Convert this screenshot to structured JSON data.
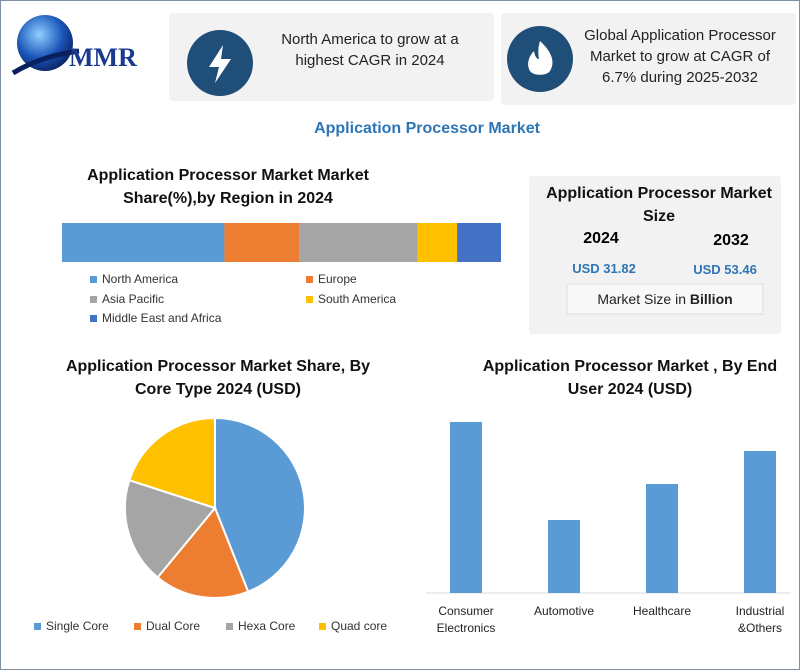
{
  "logo": "MMR",
  "header": {
    "cards": [
      "North America to grow at a highest CAGR in 2024",
      "Global Application Processor Market to grow at CAGR of 6.7% during 2025-2032"
    ]
  },
  "title": "Application Processor Market",
  "market_size": {
    "title": "Application Processor Market Size",
    "years": [
      "2024",
      "2032"
    ],
    "values": [
      "USD 31.82",
      "USD 53.46"
    ],
    "note": "Market Size in",
    "note_bold": "Billion"
  },
  "chart_data": [
    {
      "type": "stacked_bar",
      "title": "Application Processor Market Market Share(%),by Region in 2024",
      "categories": [
        null
      ],
      "series": [
        {
          "name": "North America",
          "color": "#5b9bd5",
          "values": [
            37
          ]
        },
        {
          "name": "Europe",
          "color": "#ed7d31",
          "values": [
            17
          ]
        },
        {
          "name": "Asia Pacific",
          "color": "#a5a5a5",
          "values": [
            27
          ]
        },
        {
          "name": "South America",
          "color": "#ffc000",
          "values": [
            9
          ]
        },
        {
          "name": "Middle East and Africa",
          "color": "#4472c4",
          "values": [
            10
          ]
        }
      ]
    },
    {
      "type": "pie",
      "title": "Application Processor Market  Share, By Core Type 2024  (USD)",
      "categories": [
        "Single Core",
        "Dual Core",
        "Hexa Core",
        "Quad core"
      ],
      "values": [
        44,
        17,
        19,
        20
      ],
      "colors": [
        "#5b9bd5",
        "#ed7d31",
        "#a5a5a5",
        "#ffc000"
      ]
    },
    {
      "type": "bar",
      "title": "Application Processor Market , By End User  2024  (USD)",
      "categories": [
        "Consumer Electronics",
        "Automotive",
        "Healthcare",
        "Industrial &Others"
      ],
      "values": [
        171,
        73,
        109,
        142
      ],
      "color": "#5b9bd5"
    }
  ]
}
